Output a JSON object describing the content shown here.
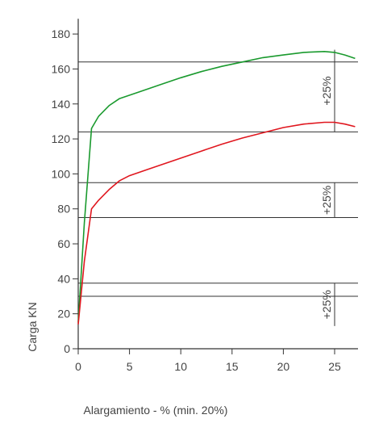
{
  "chart_data": {
    "type": "line",
    "title": "",
    "xlabel": "Alargamiento - % (min. 20%)",
    "ylabel": "Carga KN",
    "xlim": [
      0,
      27.5
    ],
    "ylim": [
      0,
      185
    ],
    "x_ticks": [
      0,
      5,
      10,
      15,
      20,
      25
    ],
    "y_ticks": [
      0,
      20,
      40,
      60,
      80,
      100,
      120,
      140,
      160,
      180
    ],
    "grid": false,
    "series": [
      {
        "color": "#1a9a2e",
        "x": [
          0,
          0.6,
          1.3,
          2.0,
          3.0,
          4.0,
          6.0,
          8.0,
          10.0,
          12.0,
          14.0,
          16.0,
          18.0,
          20.0,
          22.0,
          24.0,
          25.0,
          26.0,
          27.0
        ],
        "y": [
          15,
          72,
          126,
          133,
          139,
          143,
          147,
          151,
          155,
          158.5,
          161.5,
          164,
          166.5,
          168,
          169.5,
          170,
          169.5,
          168,
          166
        ]
      },
      {
        "color": "#e0161e",
        "x": [
          0,
          0.6,
          1.3,
          2.0,
          3.0,
          4.0,
          5.0,
          7.0,
          10.0,
          12.0,
          14.0,
          16.0,
          18.0,
          20.0,
          22.0,
          24.0,
          25.0,
          26.0,
          27.0
        ],
        "y": [
          14,
          50,
          80,
          85,
          91,
          96,
          99,
          103,
          109,
          113,
          117,
          120.5,
          123.5,
          126.5,
          128.5,
          129.5,
          129.5,
          128.5,
          127
        ]
      }
    ],
    "reference_lines": [
      164,
      124,
      95,
      75,
      37.5,
      30
    ],
    "annotations": [
      {
        "text": "+25%",
        "y_from": 124,
        "y_to": 171,
        "x": 25
      },
      {
        "text": "+25%",
        "y_from": 75,
        "y_to": 95,
        "x": 25
      },
      {
        "text": "+25%",
        "y_from": 13,
        "y_to": 37.5,
        "x": 25
      }
    ]
  }
}
